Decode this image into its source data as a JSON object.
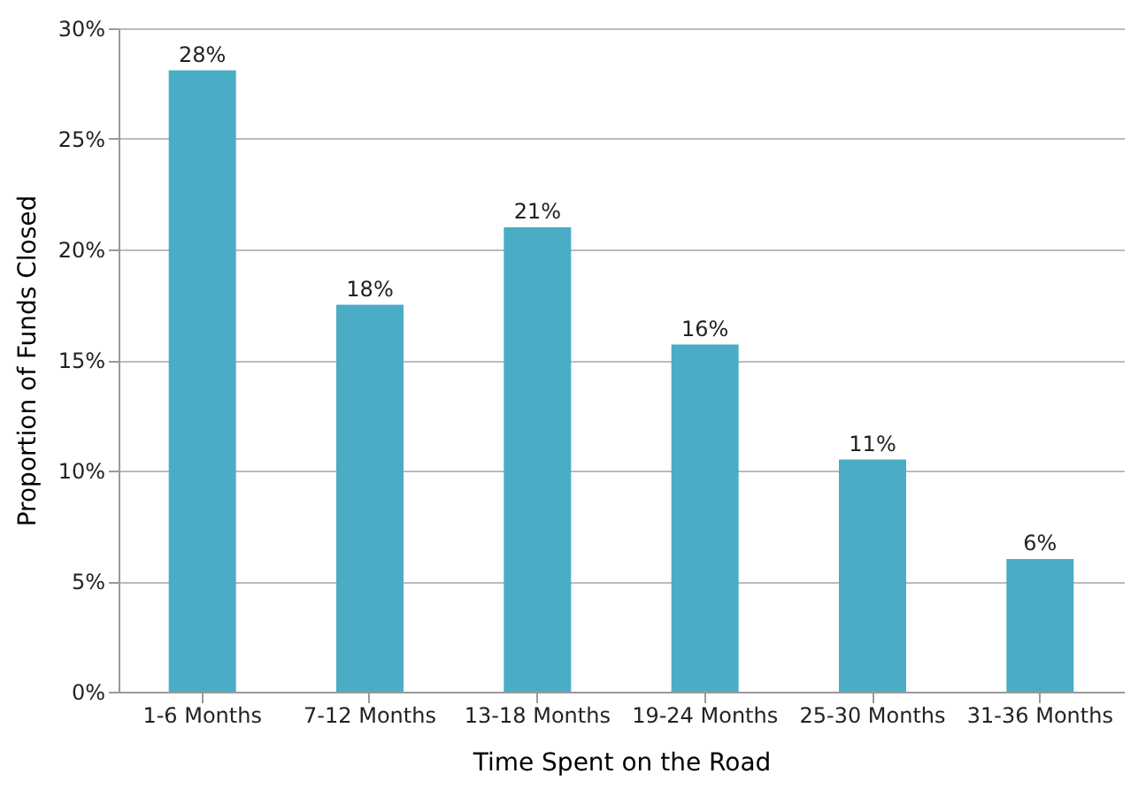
{
  "chart_data": {
    "type": "bar",
    "xlabel": "Time Spent on the Road",
    "ylabel": "Proportion of Funds Closed",
    "categories": [
      "1-6 Months",
      "7-12 Months",
      "13-18 Months",
      "19-24 Months",
      "25-30 Months",
      "31-36 Months"
    ],
    "values": [
      28.1,
      17.5,
      21.0,
      15.7,
      10.5,
      6.0
    ],
    "value_labels": [
      "28%",
      "18%",
      "21%",
      "16%",
      "11%",
      "6%"
    ],
    "color": "#4bacc6",
    "ylim": [
      0,
      30
    ],
    "yticks": [
      {
        "value": 0,
        "label": "0%"
      },
      {
        "value": 5,
        "label": "5%"
      },
      {
        "value": 10,
        "label": "10%"
      },
      {
        "value": 15,
        "label": "15%"
      },
      {
        "value": 20,
        "label": "20%"
      },
      {
        "value": 25,
        "label": "25%"
      },
      {
        "value": 30,
        "label": "30%"
      }
    ],
    "grid": "y"
  }
}
